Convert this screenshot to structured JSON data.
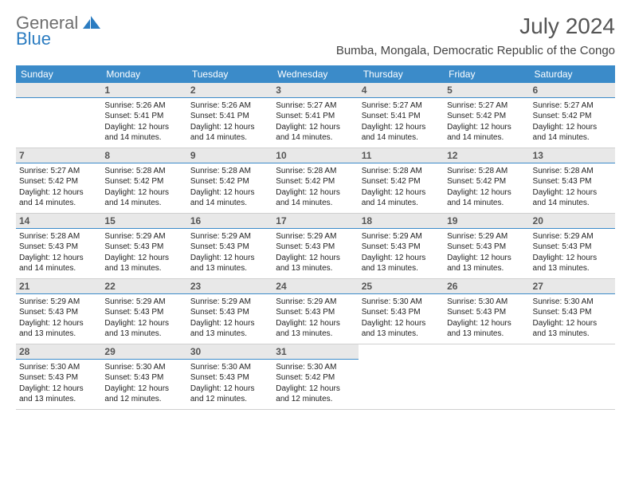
{
  "logo": {
    "word1": "General",
    "word2": "Blue"
  },
  "title": "July 2024",
  "subtitle": "Bumba, Mongala, Democratic Republic of the Congo",
  "colors": {
    "header_bg": "#3b8bc9",
    "daynum_bg": "#e8e8e8",
    "daynum_underline": "#3b8bc9",
    "text": "#222222",
    "title_color": "#555555"
  },
  "fonts": {
    "title_size_pt": 21,
    "subtitle_size_pt": 11,
    "dow_size_pt": 9,
    "cell_size_pt": 7.5
  },
  "dow": [
    "Sunday",
    "Monday",
    "Tuesday",
    "Wednesday",
    "Thursday",
    "Friday",
    "Saturday"
  ],
  "weeks": [
    [
      {
        "n": "",
        "sr": "",
        "ss": "",
        "dl": ""
      },
      {
        "n": "1",
        "sr": "Sunrise: 5:26 AM",
        "ss": "Sunset: 5:41 PM",
        "dl": "Daylight: 12 hours and 14 minutes."
      },
      {
        "n": "2",
        "sr": "Sunrise: 5:26 AM",
        "ss": "Sunset: 5:41 PM",
        "dl": "Daylight: 12 hours and 14 minutes."
      },
      {
        "n": "3",
        "sr": "Sunrise: 5:27 AM",
        "ss": "Sunset: 5:41 PM",
        "dl": "Daylight: 12 hours and 14 minutes."
      },
      {
        "n": "4",
        "sr": "Sunrise: 5:27 AM",
        "ss": "Sunset: 5:41 PM",
        "dl": "Daylight: 12 hours and 14 minutes."
      },
      {
        "n": "5",
        "sr": "Sunrise: 5:27 AM",
        "ss": "Sunset: 5:42 PM",
        "dl": "Daylight: 12 hours and 14 minutes."
      },
      {
        "n": "6",
        "sr": "Sunrise: 5:27 AM",
        "ss": "Sunset: 5:42 PM",
        "dl": "Daylight: 12 hours and 14 minutes."
      }
    ],
    [
      {
        "n": "7",
        "sr": "Sunrise: 5:27 AM",
        "ss": "Sunset: 5:42 PM",
        "dl": "Daylight: 12 hours and 14 minutes."
      },
      {
        "n": "8",
        "sr": "Sunrise: 5:28 AM",
        "ss": "Sunset: 5:42 PM",
        "dl": "Daylight: 12 hours and 14 minutes."
      },
      {
        "n": "9",
        "sr": "Sunrise: 5:28 AM",
        "ss": "Sunset: 5:42 PM",
        "dl": "Daylight: 12 hours and 14 minutes."
      },
      {
        "n": "10",
        "sr": "Sunrise: 5:28 AM",
        "ss": "Sunset: 5:42 PM",
        "dl": "Daylight: 12 hours and 14 minutes."
      },
      {
        "n": "11",
        "sr": "Sunrise: 5:28 AM",
        "ss": "Sunset: 5:42 PM",
        "dl": "Daylight: 12 hours and 14 minutes."
      },
      {
        "n": "12",
        "sr": "Sunrise: 5:28 AM",
        "ss": "Sunset: 5:42 PM",
        "dl": "Daylight: 12 hours and 14 minutes."
      },
      {
        "n": "13",
        "sr": "Sunrise: 5:28 AM",
        "ss": "Sunset: 5:43 PM",
        "dl": "Daylight: 12 hours and 14 minutes."
      }
    ],
    [
      {
        "n": "14",
        "sr": "Sunrise: 5:28 AM",
        "ss": "Sunset: 5:43 PM",
        "dl": "Daylight: 12 hours and 14 minutes."
      },
      {
        "n": "15",
        "sr": "Sunrise: 5:29 AM",
        "ss": "Sunset: 5:43 PM",
        "dl": "Daylight: 12 hours and 13 minutes."
      },
      {
        "n": "16",
        "sr": "Sunrise: 5:29 AM",
        "ss": "Sunset: 5:43 PM",
        "dl": "Daylight: 12 hours and 13 minutes."
      },
      {
        "n": "17",
        "sr": "Sunrise: 5:29 AM",
        "ss": "Sunset: 5:43 PM",
        "dl": "Daylight: 12 hours and 13 minutes."
      },
      {
        "n": "18",
        "sr": "Sunrise: 5:29 AM",
        "ss": "Sunset: 5:43 PM",
        "dl": "Daylight: 12 hours and 13 minutes."
      },
      {
        "n": "19",
        "sr": "Sunrise: 5:29 AM",
        "ss": "Sunset: 5:43 PM",
        "dl": "Daylight: 12 hours and 13 minutes."
      },
      {
        "n": "20",
        "sr": "Sunrise: 5:29 AM",
        "ss": "Sunset: 5:43 PM",
        "dl": "Daylight: 12 hours and 13 minutes."
      }
    ],
    [
      {
        "n": "21",
        "sr": "Sunrise: 5:29 AM",
        "ss": "Sunset: 5:43 PM",
        "dl": "Daylight: 12 hours and 13 minutes."
      },
      {
        "n": "22",
        "sr": "Sunrise: 5:29 AM",
        "ss": "Sunset: 5:43 PM",
        "dl": "Daylight: 12 hours and 13 minutes."
      },
      {
        "n": "23",
        "sr": "Sunrise: 5:29 AM",
        "ss": "Sunset: 5:43 PM",
        "dl": "Daylight: 12 hours and 13 minutes."
      },
      {
        "n": "24",
        "sr": "Sunrise: 5:29 AM",
        "ss": "Sunset: 5:43 PM",
        "dl": "Daylight: 12 hours and 13 minutes."
      },
      {
        "n": "25",
        "sr": "Sunrise: 5:30 AM",
        "ss": "Sunset: 5:43 PM",
        "dl": "Daylight: 12 hours and 13 minutes."
      },
      {
        "n": "26",
        "sr": "Sunrise: 5:30 AM",
        "ss": "Sunset: 5:43 PM",
        "dl": "Daylight: 12 hours and 13 minutes."
      },
      {
        "n": "27",
        "sr": "Sunrise: 5:30 AM",
        "ss": "Sunset: 5:43 PM",
        "dl": "Daylight: 12 hours and 13 minutes."
      }
    ],
    [
      {
        "n": "28",
        "sr": "Sunrise: 5:30 AM",
        "ss": "Sunset: 5:43 PM",
        "dl": "Daylight: 12 hours and 13 minutes."
      },
      {
        "n": "29",
        "sr": "Sunrise: 5:30 AM",
        "ss": "Sunset: 5:43 PM",
        "dl": "Daylight: 12 hours and 12 minutes."
      },
      {
        "n": "30",
        "sr": "Sunrise: 5:30 AM",
        "ss": "Sunset: 5:43 PM",
        "dl": "Daylight: 12 hours and 12 minutes."
      },
      {
        "n": "31",
        "sr": "Sunrise: 5:30 AM",
        "ss": "Sunset: 5:42 PM",
        "dl": "Daylight: 12 hours and 12 minutes."
      },
      {
        "n": "",
        "sr": "",
        "ss": "",
        "dl": ""
      },
      {
        "n": "",
        "sr": "",
        "ss": "",
        "dl": ""
      },
      {
        "n": "",
        "sr": "",
        "ss": "",
        "dl": ""
      }
    ]
  ]
}
